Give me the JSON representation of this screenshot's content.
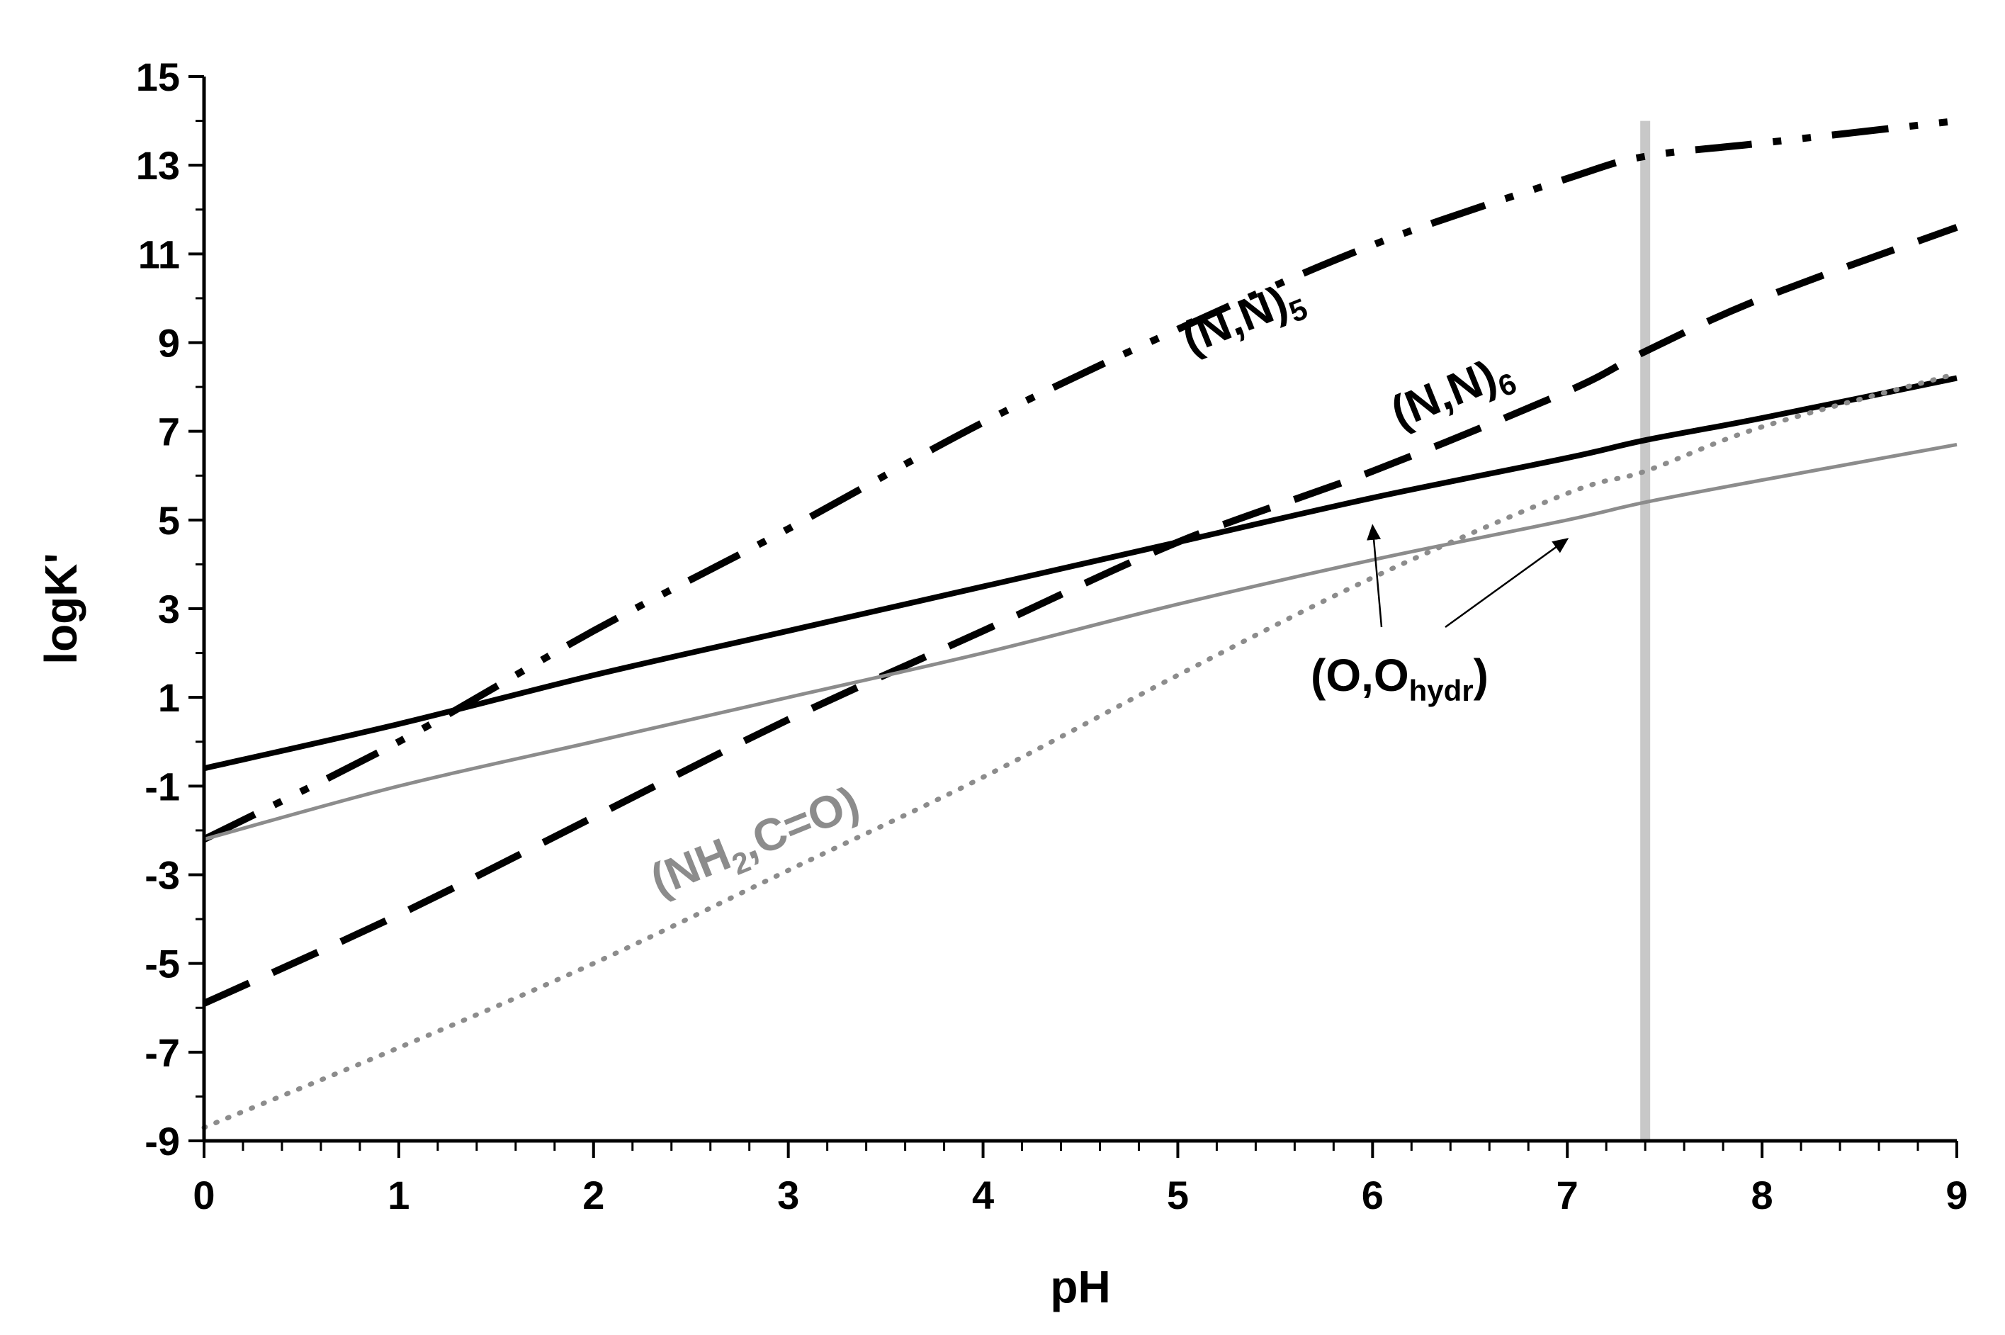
{
  "chart_data": {
    "type": "line",
    "xlabel": "pH",
    "ylabel": "logK'",
    "xlim": [
      0,
      9
    ],
    "ylim": [
      -9,
      15
    ],
    "xticks": [
      0,
      1,
      2,
      3,
      4,
      5,
      6,
      7,
      8,
      9
    ],
    "yticks": [
      -9,
      -7,
      -5,
      -3,
      -1,
      1,
      3,
      5,
      7,
      9,
      11,
      13,
      15
    ],
    "x_minor_step": 0.2,
    "y_minor_step": 1,
    "grid": false,
    "colors": {
      "black": "#000000",
      "gray": "#8c8c8c",
      "light_gray": "#c8c8c8"
    },
    "series": [
      {
        "name": "(N,N)5",
        "label_main": "(N,N)",
        "label_sub": "5",
        "color": "#000000",
        "style": "dash-dot-dot",
        "x": [
          0,
          1,
          2,
          3,
          4,
          5,
          6,
          7,
          7.4,
          8,
          9
        ],
        "y": [
          -2.2,
          0.0,
          2.5,
          4.8,
          7.2,
          9.3,
          11.2,
          12.7,
          13.2,
          13.5,
          14.0
        ]
      },
      {
        "name": "(N,N)6",
        "label_main": "(N,N)",
        "label_sub": "6",
        "color": "#000000",
        "style": "long-dash",
        "x": [
          0,
          1,
          2,
          3,
          4,
          5,
          6,
          7,
          7.4,
          8,
          9
        ],
        "y": [
          -5.9,
          -3.9,
          -1.7,
          0.5,
          2.5,
          4.5,
          6.1,
          7.9,
          8.8,
          10.0,
          11.6
        ]
      },
      {
        "name": "(O,O)",
        "color": "#000000",
        "style": "solid",
        "x": [
          0,
          1,
          2,
          3,
          4,
          5,
          6,
          7,
          7.4,
          8,
          9
        ],
        "y": [
          -0.6,
          0.4,
          1.5,
          2.5,
          3.5,
          4.5,
          5.5,
          6.4,
          6.8,
          7.3,
          8.2
        ]
      },
      {
        "name": "(O,Ohydr)",
        "color": "#8c8c8c",
        "style": "solid",
        "x": [
          0,
          1,
          2,
          3,
          4,
          5,
          6,
          7,
          7.4,
          8,
          9
        ],
        "y": [
          -2.2,
          -1.0,
          0.0,
          1.0,
          2.0,
          3.1,
          4.1,
          5.0,
          5.4,
          5.9,
          6.7
        ]
      },
      {
        "name": "(NH2,C=O)",
        "label_main": "(NH",
        "label_sub": "2",
        "label_tail": ",C=O)",
        "color": "#8c8c8c",
        "style": "dotted",
        "x": [
          0,
          1,
          2,
          3,
          4,
          5,
          6,
          7,
          7.4,
          8,
          9
        ],
        "y": [
          -8.7,
          -6.9,
          -5.0,
          -2.9,
          -0.8,
          1.5,
          3.7,
          5.6,
          6.1,
          7.1,
          8.3
        ]
      }
    ],
    "vertical_line": {
      "x": 7.4,
      "y_from": -9,
      "y_to": 14,
      "color": "#c8c8c8"
    },
    "annotations": [
      {
        "label_main": "(O,O",
        "label_sub": "hydr",
        "label_tail": ")",
        "arrows_to": [
          {
            "x": 6.0,
            "y": 5.0
          },
          {
            "x": 7.0,
            "y": 4.7
          }
        ]
      }
    ]
  }
}
